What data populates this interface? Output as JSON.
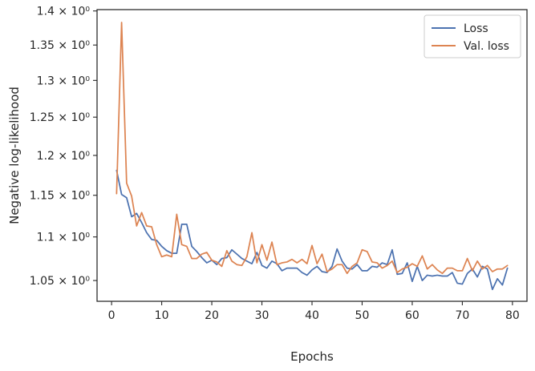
{
  "chart_data": {
    "type": "line",
    "xlabel": "Epochs",
    "ylabel": "Negative log-likelihood",
    "yscale": "log",
    "xlim": [
      -2.9,
      82.9
    ],
    "ylim": [
      1.027,
      1.402
    ],
    "xticks": [
      0,
      10,
      20,
      30,
      40,
      50,
      60,
      70,
      80
    ],
    "xtick_labels": [
      "0",
      "10",
      "20",
      "30",
      "40",
      "50",
      "60",
      "70",
      "80"
    ],
    "yticks": [
      1.05,
      1.1,
      1.15,
      1.2,
      1.25,
      1.3,
      1.35,
      1.4
    ],
    "ytick_labels": [
      "1.05 × 10⁰",
      "1.1 × 10⁰",
      "1.15 × 10⁰",
      "1.2 × 10⁰",
      "1.25 × 10⁰",
      "1.3 × 10⁰",
      "1.35 × 10⁰",
      "1.4 × 10⁰"
    ],
    "grid": false,
    "legend_position": "top-right",
    "x": [
      1,
      2,
      3,
      4,
      5,
      6,
      7,
      8,
      9,
      10,
      11,
      12,
      13,
      14,
      15,
      16,
      17,
      18,
      19,
      20,
      21,
      22,
      23,
      24,
      25,
      26,
      27,
      28,
      29,
      30,
      31,
      32,
      33,
      34,
      35,
      36,
      37,
      38,
      39,
      40,
      41,
      42,
      43,
      44,
      45,
      46,
      47,
      48,
      49,
      50,
      51,
      52,
      53,
      54,
      55,
      56,
      57,
      58,
      59,
      60,
      61,
      62,
      63,
      64,
      65,
      66,
      67,
      68,
      69,
      70,
      71,
      72,
      73,
      74,
      75,
      76,
      77,
      78,
      79
    ],
    "series": [
      {
        "name": "Loss",
        "color": "#4c72b0",
        "values": [
          1.181,
          1.151,
          1.147,
          1.124,
          1.128,
          1.117,
          1.105,
          1.097,
          1.096,
          1.089,
          1.084,
          1.081,
          1.081,
          1.115,
          1.115,
          1.089,
          1.083,
          1.076,
          1.07,
          1.073,
          1.068,
          1.075,
          1.076,
          1.085,
          1.08,
          1.075,
          1.072,
          1.069,
          1.082,
          1.067,
          1.064,
          1.072,
          1.069,
          1.061,
          1.064,
          1.064,
          1.064,
          1.059,
          1.056,
          1.062,
          1.066,
          1.06,
          1.059,
          1.066,
          1.086,
          1.072,
          1.064,
          1.063,
          1.068,
          1.061,
          1.061,
          1.066,
          1.065,
          1.07,
          1.068,
          1.085,
          1.057,
          1.058,
          1.07,
          1.049,
          1.066,
          1.05,
          1.056,
          1.055,
          1.056,
          1.055,
          1.055,
          1.059,
          1.047,
          1.046,
          1.058,
          1.063,
          1.054,
          1.066,
          1.063,
          1.04,
          1.052,
          1.045,
          1.064
        ]
      },
      {
        "name": "Val. loss",
        "color": "#dd8452",
        "values": [
          1.152,
          1.383,
          1.165,
          1.149,
          1.113,
          1.129,
          1.113,
          1.112,
          1.091,
          1.077,
          1.079,
          1.077,
          1.127,
          1.091,
          1.089,
          1.075,
          1.075,
          1.08,
          1.082,
          1.073,
          1.071,
          1.066,
          1.084,
          1.072,
          1.068,
          1.067,
          1.077,
          1.105,
          1.07,
          1.091,
          1.073,
          1.094,
          1.068,
          1.07,
          1.071,
          1.074,
          1.07,
          1.074,
          1.069,
          1.09,
          1.069,
          1.08,
          1.06,
          1.063,
          1.068,
          1.068,
          1.058,
          1.066,
          1.07,
          1.085,
          1.083,
          1.071,
          1.07,
          1.064,
          1.067,
          1.072,
          1.059,
          1.063,
          1.065,
          1.069,
          1.066,
          1.078,
          1.063,
          1.068,
          1.062,
          1.058,
          1.064,
          1.064,
          1.061,
          1.061,
          1.075,
          1.061,
          1.072,
          1.063,
          1.067,
          1.06,
          1.063,
          1.063,
          1.067
        ]
      }
    ]
  }
}
